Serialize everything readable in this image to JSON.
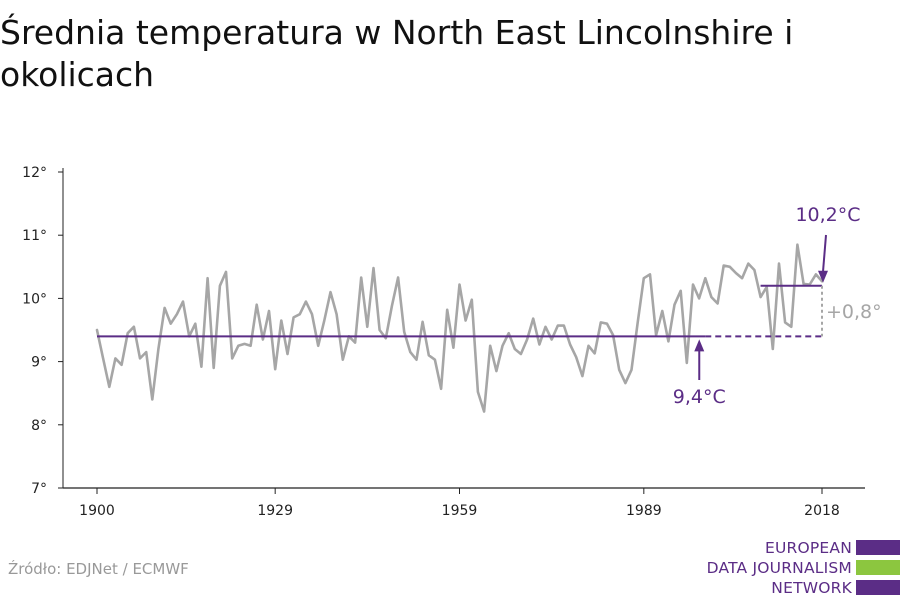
{
  "title": "Średnia temperatura w North East Lincolnshire i okolicach",
  "source": "Źródło: EDJNet / ECMWF",
  "logo": {
    "lines": [
      "EUROPEAN",
      "DATA JOURNALISM",
      "NETWORK"
    ],
    "colors": [
      "#5b2d86",
      "#8cc63f",
      "#5b2d86"
    ]
  },
  "colors": {
    "series": "#a6a6a6",
    "reference": "#5b2d86",
    "difference": "#a6a6a6"
  },
  "chart_data": {
    "type": "line",
    "x_ticks": [
      1900,
      1929,
      1959,
      1989,
      2018
    ],
    "y_ticks": [
      7,
      8,
      9,
      10,
      11,
      12
    ],
    "y_tick_labels": [
      "7°",
      "8°",
      "9°",
      "10°",
      "11°",
      "12°"
    ],
    "ylim": [
      7,
      12
    ],
    "xlim": [
      1900,
      2018
    ],
    "series": [
      {
        "x": [
          1900,
          1901,
          1902,
          1903,
          1904,
          1905,
          1906,
          1907,
          1908,
          1909,
          1910,
          1911,
          1912,
          1913,
          1914,
          1915,
          1916,
          1917,
          1918,
          1919,
          1920,
          1921,
          1922,
          1923,
          1924,
          1925,
          1926,
          1927,
          1928,
          1929,
          1930,
          1931,
          1932,
          1933,
          1934,
          1935,
          1936,
          1937,
          1938,
          1939,
          1940,
          1941,
          1942,
          1943,
          1944,
          1945,
          1946,
          1947,
          1948,
          1949,
          1950,
          1951,
          1952,
          1953,
          1954,
          1955,
          1956,
          1957,
          1958,
          1959,
          1960,
          1961,
          1962,
          1963,
          1964,
          1965,
          1966,
          1967,
          1968,
          1969,
          1970,
          1971,
          1972,
          1973,
          1974,
          1975,
          1976,
          1977,
          1978,
          1979,
          1980,
          1981,
          1982,
          1983,
          1984,
          1985,
          1986,
          1987,
          1988,
          1989,
          1990,
          1991,
          1992,
          1993,
          1994,
          1995,
          1996,
          1997,
          1998,
          1999,
          2000,
          2001,
          2002,
          2003,
          2004,
          2005,
          2006,
          2007,
          2008,
          2009,
          2010,
          2011,
          2012,
          2013,
          2014,
          2015,
          2016,
          2017,
          2018
        ],
        "values": [
          9.5,
          9.05,
          8.6,
          9.05,
          8.95,
          9.45,
          9.55,
          9.05,
          9.15,
          8.4,
          9.2,
          9.85,
          9.6,
          9.75,
          9.95,
          9.4,
          9.6,
          8.92,
          10.32,
          8.9,
          10.2,
          10.42,
          9.05,
          9.25,
          9.28,
          9.25,
          9.9,
          9.35,
          9.8,
          8.88,
          9.65,
          9.12,
          9.7,
          9.75,
          9.95,
          9.75,
          9.25,
          9.65,
          10.1,
          9.75,
          9.03,
          9.4,
          9.3,
          10.33,
          9.55,
          10.48,
          9.5,
          9.37,
          9.88,
          10.33,
          9.47,
          9.15,
          9.03,
          9.63,
          9.1,
          9.03,
          8.57,
          9.82,
          9.22,
          10.22,
          9.65,
          9.98,
          8.52,
          8.21,
          9.25,
          8.85,
          9.25,
          9.45,
          9.2,
          9.12,
          9.35,
          9.68,
          9.27,
          9.55,
          9.35,
          9.57,
          9.57,
          9.27,
          9.07,
          8.77,
          9.25,
          9.13,
          9.62,
          9.6,
          9.42,
          8.87,
          8.66,
          8.87,
          9.62,
          10.32,
          10.38,
          9.42,
          9.8,
          9.32,
          9.9,
          10.12,
          8.98,
          10.22,
          10.0,
          10.32,
          10.02,
          9.92,
          10.52,
          10.5,
          10.4,
          10.32,
          10.55,
          10.45,
          10.02,
          10.18,
          9.2,
          10.55,
          9.62,
          9.55,
          10.85,
          10.23,
          10.22,
          10.38,
          10.27
        ]
      }
    ],
    "reference_mean": {
      "value": 9.4,
      "label": "9,4°C",
      "from": 1900,
      "to": 2018
    },
    "recent_mean": {
      "value": 10.2,
      "label": "10,2°C",
      "from": 2008,
      "to": 2018
    },
    "difference_label": "+0,8°",
    "grid": false
  }
}
